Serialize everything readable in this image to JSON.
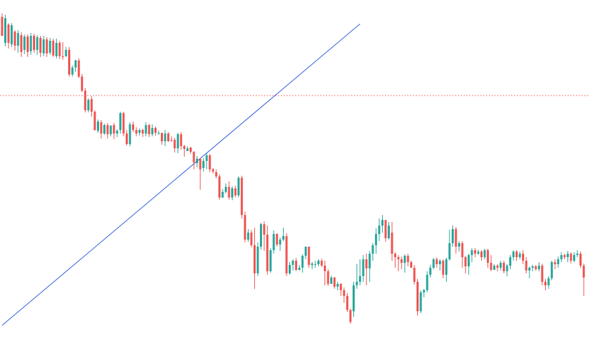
{
  "chart_data": {
    "type": "candlestick",
    "title": "",
    "xlabel": "",
    "ylabel": "",
    "grid": false,
    "legend": "none",
    "ylim": [
      0,
      481
    ],
    "colors": {
      "up": "#26a69a",
      "down": "#ef5350",
      "trendline": "#2f5fdc",
      "reference_line": "#ef5350",
      "background": "#ffffff"
    },
    "reference_line": {
      "y": 345,
      "style": "dotted"
    },
    "trendline": {
      "points": [
        [
          0,
          18
        ],
        [
          112,
          447
        ]
      ]
    },
    "candles": [
      [
        457,
        430,
        462,
        430
      ],
      [
        420,
        455,
        460,
        415
      ],
      [
        446,
        420,
        448,
        412
      ],
      [
        418,
        445,
        448,
        414
      ],
      [
        436,
        416,
        438,
        409
      ],
      [
        416,
        434,
        438,
        406
      ],
      [
        431,
        407,
        435,
        400
      ],
      [
        410,
        429,
        432,
        404
      ],
      [
        429,
        407,
        432,
        400
      ],
      [
        408,
        430,
        434,
        403
      ],
      [
        430,
        410,
        433,
        406
      ],
      [
        410,
        428,
        431,
        403
      ],
      [
        427,
        406,
        430,
        400
      ],
      [
        405,
        425,
        430,
        401
      ],
      [
        425,
        405,
        428,
        400
      ],
      [
        406,
        423,
        427,
        403
      ],
      [
        423,
        402,
        426,
        400
      ],
      [
        401,
        420,
        426,
        398
      ],
      [
        420,
        401,
        423,
        397
      ],
      [
        401,
        400,
        421,
        396
      ],
      [
        401,
        410,
        414,
        400
      ],
      [
        410,
        375,
        414,
        372
      ],
      [
        375,
        385,
        388,
        372
      ],
      [
        385,
        395,
        396,
        379
      ],
      [
        395,
        372,
        398,
        370
      ],
      [
        372,
        352,
        376,
        350
      ],
      [
        352,
        324,
        356,
        321
      ],
      [
        324,
        339,
        341,
        321
      ],
      [
        340,
        322,
        344,
        315
      ],
      [
        322,
        296,
        324,
        295
      ],
      [
        295,
        308,
        311,
        292
      ],
      [
        307,
        291,
        310,
        284
      ],
      [
        291,
        303,
        305,
        289
      ],
      [
        303,
        290,
        306,
        284
      ],
      [
        290,
        302,
        303,
        287
      ],
      [
        303,
        291,
        306,
        283
      ],
      [
        291,
        295,
        297,
        286
      ],
      [
        296,
        320,
        322,
        291
      ],
      [
        320,
        291,
        322,
        287
      ],
      [
        291,
        276,
        296,
        274
      ],
      [
        276,
        304,
        307,
        273
      ],
      [
        304,
        296,
        308,
        293
      ],
      [
        296,
        291,
        300,
        287
      ],
      [
        292,
        296,
        298,
        288
      ],
      [
        296,
        291,
        298,
        286
      ],
      [
        291,
        303,
        307,
        287
      ],
      [
        303,
        290,
        305,
        286
      ],
      [
        290,
        299,
        304,
        287
      ],
      [
        299,
        292,
        301,
        288
      ],
      [
        292,
        292,
        295,
        289
      ],
      [
        292,
        280,
        286,
        275
      ],
      [
        280,
        291,
        296,
        273
      ],
      [
        291,
        280,
        293,
        279
      ],
      [
        282,
        281,
        287,
        279
      ],
      [
        282,
        270,
        285,
        264
      ],
      [
        270,
        290,
        292,
        263
      ],
      [
        290,
        273,
        293,
        268
      ],
      [
        273,
        269,
        275,
        258
      ],
      [
        266,
        270,
        273,
        266
      ],
      [
        271,
        265,
        272,
        262
      ],
      [
        265,
        250,
        266,
        240
      ],
      [
        249,
        255,
        259,
        243
      ],
      [
        255,
        240,
        256,
        211
      ],
      [
        242,
        252,
        256,
        237
      ],
      [
        252,
        260,
        263,
        240
      ],
      [
        260,
        240,
        262,
        236
      ],
      [
        240,
        237,
        242,
        234
      ],
      [
        236,
        230,
        240,
        227
      ],
      [
        230,
        200,
        233,
        197
      ],
      [
        200,
        208,
        212,
        199
      ],
      [
        208,
        215,
        220,
        206
      ],
      [
        215,
        200,
        223,
        197
      ],
      [
        200,
        213,
        216,
        196
      ],
      [
        213,
        203,
        217,
        200
      ],
      [
        203,
        228,
        230,
        200
      ],
      [
        228,
        175,
        231,
        170
      ],
      [
        175,
        140,
        180,
        136
      ],
      [
        140,
        150,
        155,
        137
      ],
      [
        150,
        132,
        154,
        129
      ],
      [
        132,
        92,
        157,
        70
      ],
      [
        92,
        130,
        136,
        88
      ],
      [
        130,
        162,
        164,
        126
      ],
      [
        162,
        147,
        166,
        124
      ],
      [
        147,
        95,
        160,
        90
      ],
      [
        95,
        125,
        128,
        93
      ],
      [
        125,
        148,
        153,
        120
      ],
      [
        148,
        133,
        149,
        130
      ],
      [
        133,
        140,
        143,
        124
      ],
      [
        140,
        145,
        157,
        138
      ],
      [
        145,
        92,
        149,
        88
      ],
      [
        92,
        104,
        108,
        90
      ],
      [
        104,
        110,
        112,
        96
      ],
      [
        110,
        97,
        114,
        95
      ],
      [
        97,
        100,
        104,
        96
      ],
      [
        100,
        117,
        119,
        93
      ],
      [
        117,
        130,
        130,
        112
      ],
      [
        130,
        104,
        128,
        100
      ],
      [
        104,
        106,
        108,
        98
      ],
      [
        104,
        105,
        110,
        100
      ],
      [
        105,
        110,
        112,
        102
      ],
      [
        110,
        103,
        113,
        101
      ],
      [
        103,
        95,
        110,
        75
      ],
      [
        95,
        77,
        98,
        74
      ],
      [
        77,
        86,
        89,
        77
      ],
      [
        86,
        73,
        87,
        70
      ],
      [
        73,
        77,
        80,
        68
      ],
      [
        77,
        68,
        78,
        60
      ],
      [
        68,
        60,
        72,
        50
      ],
      [
        60,
        40,
        64,
        37
      ],
      [
        40,
        23,
        42,
        20
      ],
      [
        38,
        75,
        80,
        30
      ],
      [
        75,
        80,
        105,
        70
      ],
      [
        80,
        88,
        112,
        75
      ],
      [
        88,
        112,
        118,
        80
      ],
      [
        112,
        99,
        120,
        75
      ],
      [
        99,
        120,
        124,
        80
      ],
      [
        120,
        132,
        135,
        110
      ],
      [
        132,
        148,
        156,
        120
      ],
      [
        148,
        160,
        170,
        138
      ],
      [
        160,
        168,
        175,
        150
      ],
      [
        168,
        142,
        158,
        137
      ],
      [
        142,
        160,
        165,
        140
      ],
      [
        150,
        120,
        165,
        110
      ],
      [
        120,
        115,
        122,
        100
      ],
      [
        115,
        112,
        118,
        95
      ],
      [
        112,
        107,
        116,
        98
      ],
      [
        107,
        117,
        119,
        93
      ],
      [
        117,
        108,
        120,
        102
      ],
      [
        108,
        100,
        110,
        100
      ],
      [
        100,
        80,
        104,
        76
      ],
      [
        80,
        38,
        84,
        32
      ],
      [
        38,
        65,
        68,
        35
      ],
      [
        65,
        68,
        70,
        58
      ],
      [
        68,
        90,
        95,
        65
      ],
      [
        90,
        100,
        104,
        86
      ],
      [
        100,
        112,
        114,
        98
      ],
      [
        112,
        105,
        115,
        100
      ],
      [
        105,
        110,
        112,
        96
      ],
      [
        110,
        90,
        112,
        85
      ],
      [
        90,
        112,
        114,
        80
      ],
      [
        112,
        135,
        154,
        110
      ],
      [
        135,
        155,
        160,
        130
      ],
      [
        155,
        130,
        158,
        120
      ],
      [
        130,
        135,
        138,
        123
      ],
      [
        135,
        115,
        138,
        100
      ],
      [
        115,
        102,
        117,
        92
      ],
      [
        102,
        118,
        120,
        90
      ],
      [
        118,
        125,
        128,
        108
      ],
      [
        125,
        120,
        128,
        115
      ],
      [
        120,
        123,
        126,
        118
      ],
      [
        123,
        115,
        125,
        110
      ],
      [
        115,
        125,
        127,
        112
      ],
      [
        125,
        107,
        127,
        100
      ],
      [
        107,
        97,
        118,
        95
      ],
      [
        97,
        103,
        105,
        97
      ],
      [
        103,
        100,
        105,
        95
      ],
      [
        100,
        107,
        110,
        96
      ],
      [
        107,
        95,
        110,
        92
      ],
      [
        95,
        103,
        105,
        88
      ],
      [
        103,
        115,
        118,
        98
      ],
      [
        115,
        123,
        125,
        110
      ],
      [
        123,
        115,
        125,
        110
      ],
      [
        115,
        120,
        123,
        112
      ],
      [
        120,
        110,
        125,
        105
      ],
      [
        110,
        96,
        115,
        92
      ],
      [
        96,
        100,
        102,
        85
      ],
      [
        100,
        102,
        104,
        95
      ],
      [
        102,
        98,
        104,
        96
      ],
      [
        98,
        103,
        108,
        95
      ],
      [
        103,
        80,
        106,
        75
      ],
      [
        80,
        75,
        84,
        68
      ],
      [
        75,
        85,
        88,
        70
      ],
      [
        85,
        108,
        110,
        82
      ],
      [
        108,
        105,
        112,
        98
      ],
      [
        105,
        112,
        116,
        100
      ],
      [
        112,
        118,
        122,
        108
      ],
      [
        118,
        115,
        120,
        112
      ],
      [
        115,
        120,
        124,
        108
      ],
      [
        120,
        110,
        122,
        106
      ],
      [
        110,
        118,
        122,
        108
      ],
      [
        118,
        120,
        125,
        115
      ],
      [
        120,
        103,
        123,
        100
      ],
      [
        103,
        86,
        106,
        60
      ]
    ]
  }
}
